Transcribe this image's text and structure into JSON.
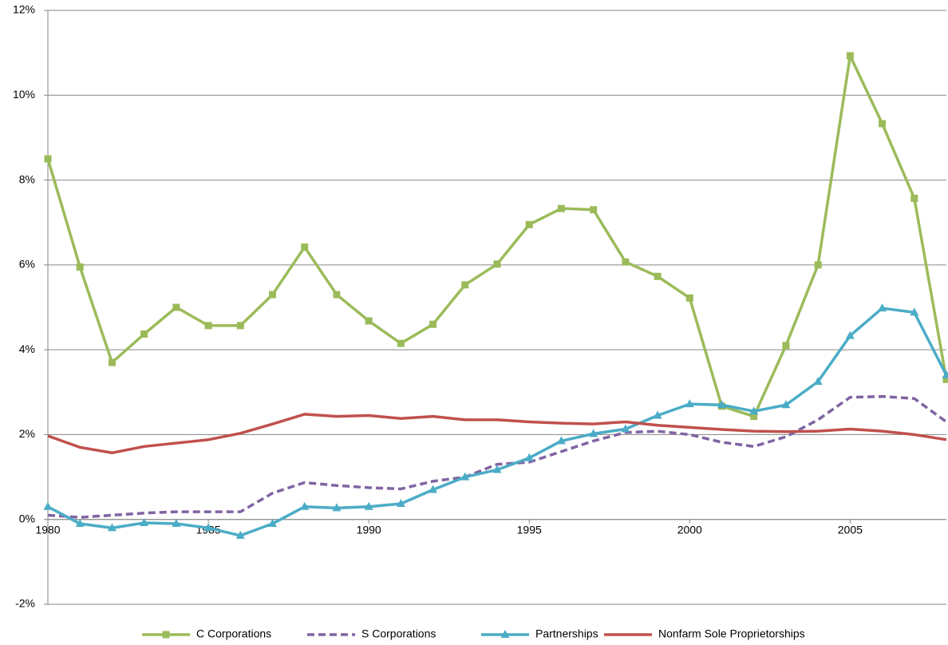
{
  "chart_data": {
    "type": "line",
    "x": [
      1980,
      1981,
      1982,
      1983,
      1984,
      1985,
      1986,
      1987,
      1988,
      1989,
      1990,
      1991,
      1992,
      1993,
      1994,
      1995,
      1996,
      1997,
      1998,
      1999,
      2000,
      2001,
      2002,
      2003,
      2004,
      2005,
      2006,
      2007,
      2008
    ],
    "xlim": [
      1980,
      2008
    ],
    "xticks": [
      1980,
      1985,
      1990,
      1995,
      2000,
      2005
    ],
    "ylim": [
      -2,
      12
    ],
    "yticks": [
      {
        "value": -2,
        "label": "-2%"
      },
      {
        "value": 0,
        "label": "0%"
      },
      {
        "value": 2,
        "label": "2%"
      },
      {
        "value": 4,
        "label": "4%"
      },
      {
        "value": 6,
        "label": "6%"
      },
      {
        "value": 8,
        "label": "8%"
      },
      {
        "value": 10,
        "label": "10%"
      },
      {
        "value": 12,
        "label": "12%"
      }
    ],
    "grid": true,
    "legend": "bottom",
    "series": [
      {
        "name": "C Corporations",
        "color": "#9bbb59",
        "marker": "square",
        "dash": false,
        "values": [
          8.5,
          5.95,
          3.7,
          4.37,
          5.0,
          4.57,
          4.57,
          5.3,
          6.42,
          5.3,
          4.68,
          4.15,
          4.6,
          5.53,
          6.02,
          6.95,
          7.33,
          7.3,
          6.07,
          5.73,
          5.22,
          2.67,
          2.43,
          4.1,
          6.0,
          10.93,
          9.33,
          7.57,
          3.3
        ]
      },
      {
        "name": "S Corporations",
        "color": "#8064a2",
        "marker": "none",
        "dash": true,
        "values": [
          0.1,
          0.05,
          0.1,
          0.15,
          0.18,
          0.18,
          0.18,
          0.62,
          0.87,
          0.8,
          0.75,
          0.72,
          0.9,
          1.0,
          1.3,
          1.35,
          1.6,
          1.85,
          2.05,
          2.08,
          2.0,
          1.82,
          1.72,
          1.95,
          2.35,
          2.88,
          2.9,
          2.85,
          2.3
        ]
      },
      {
        "name": "Partnerships",
        "color": "#4bacc6",
        "marker": "triangle",
        "dash": false,
        "values": [
          0.3,
          -0.1,
          -0.2,
          -0.08,
          -0.1,
          -0.2,
          -0.38,
          -0.1,
          0.3,
          0.27,
          0.3,
          0.37,
          0.7,
          1.0,
          1.17,
          1.45,
          1.85,
          2.02,
          2.13,
          2.45,
          2.72,
          2.7,
          2.55,
          2.7,
          3.25,
          4.33,
          4.98,
          4.88,
          3.4
        ]
      },
      {
        "name": "Nonfarm Sole Proprietorships",
        "color": "#c0504d",
        "marker": "none",
        "dash": false,
        "values": [
          1.97,
          1.7,
          1.57,
          1.72,
          1.8,
          1.88,
          2.03,
          2.25,
          2.48,
          2.43,
          2.45,
          2.38,
          2.43,
          2.35,
          2.35,
          2.3,
          2.27,
          2.25,
          2.3,
          2.22,
          2.17,
          2.12,
          2.08,
          2.07,
          2.08,
          2.13,
          2.08,
          2.0,
          1.88
        ]
      }
    ]
  }
}
